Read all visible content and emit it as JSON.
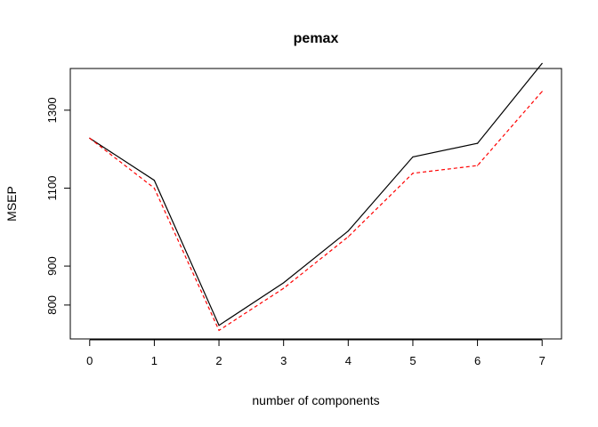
{
  "chart_data": {
    "type": "line",
    "title": "pemax",
    "xlabel": "number of components",
    "ylabel": "MSEP",
    "x": [
      0,
      1,
      2,
      3,
      4,
      5,
      6,
      7
    ],
    "xlim": [
      -0.3,
      7.3
    ],
    "ylim": [
      713,
      1407
    ],
    "xticks": [
      0,
      1,
      2,
      3,
      4,
      5,
      6,
      7
    ],
    "yticks": [
      800,
      900,
      1100,
      1300
    ],
    "series": [
      {
        "values": [
          1228,
          1120,
          748,
          857,
          990,
          1180,
          1215,
          1420
        ],
        "color": "#000000",
        "linestyle": "solid"
      },
      {
        "values": [
          1228,
          1100,
          735,
          843,
          975,
          1138,
          1158,
          1348
        ],
        "color": "#ff0000",
        "linestyle": "dashed"
      }
    ],
    "grid": false,
    "legend": "none"
  }
}
